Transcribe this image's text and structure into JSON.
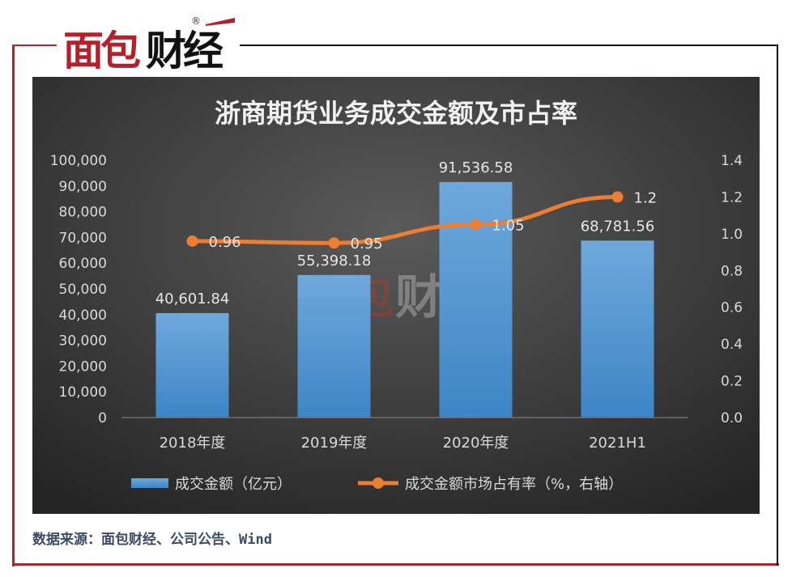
{
  "logo": {
    "text": "面包财经",
    "mark": "®"
  },
  "source": "数据来源：面包财经、公司公告、Wind",
  "chart_data": {
    "type": "bar+line",
    "title": "浙商期货业务成交金额及市占率",
    "categories": [
      "2018年度",
      "2019年度",
      "2020年度",
      "2021H1"
    ],
    "series": [
      {
        "name": "成交金额（亿元）",
        "type": "bar",
        "axis": "left",
        "values": [
          40601.84,
          55398.18,
          91536.58,
          68781.56
        ],
        "labels": [
          "40,601.84",
          "55,398.18",
          "91,536.58",
          "68,781.56"
        ],
        "color": "#5b9bd5"
      },
      {
        "name": "成交金额市场占有率（%，右轴）",
        "type": "line",
        "axis": "right",
        "values": [
          0.96,
          0.95,
          1.05,
          1.2
        ],
        "labels": [
          "0.96",
          "0.95",
          "1.05",
          "1.2"
        ],
        "color": "#ed7d31"
      }
    ],
    "y_left": {
      "range": [
        0,
        100000
      ],
      "ticks": [
        "0",
        "10,000",
        "20,000",
        "30,000",
        "40,000",
        "50,000",
        "60,000",
        "70,000",
        "80,000",
        "90,000",
        "100,000"
      ]
    },
    "y_right": {
      "range": [
        0,
        1.4
      ],
      "ticks": [
        "0.0",
        "0.2",
        "0.4",
        "0.6",
        "0.8",
        "1.0",
        "1.2",
        "1.4"
      ]
    },
    "grid": false,
    "legend": "bottom",
    "background": "#333333"
  }
}
